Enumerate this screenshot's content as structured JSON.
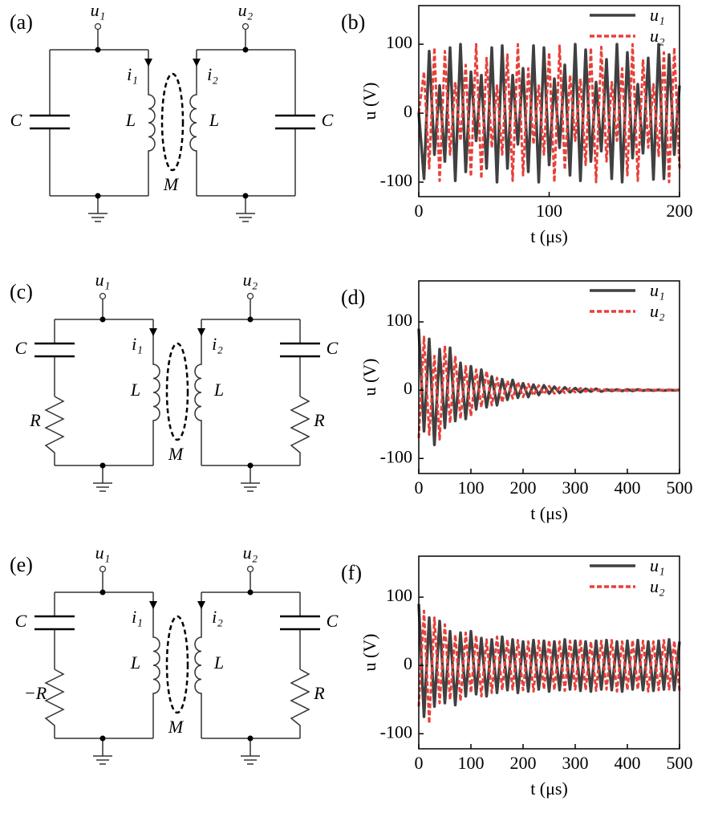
{
  "circuits": [
    {
      "panel": "(a)",
      "u_left": "u₁",
      "u_right": "u₂",
      "i_left": "i₁",
      "i_right": "i₂",
      "L_left": "L",
      "L_right": "L",
      "C_left": "C",
      "C_right": "C",
      "M": "M"
    },
    {
      "panel": "(c)",
      "u_left": "u₁",
      "u_right": "u₂",
      "i_left": "i₁",
      "i_right": "i₂",
      "L_left": "L",
      "L_right": "L",
      "C_left": "C",
      "C_right": "C",
      "M": "M",
      "R_left": "R",
      "R_right": "R"
    },
    {
      "panel": "(e)",
      "u_left": "u₁",
      "u_right": "u₂",
      "i_left": "i₁",
      "i_right": "i₂",
      "L_left": "L",
      "L_right": "L",
      "C_left": "C",
      "C_right": "C",
      "M": "M",
      "R_left": "−R",
      "R_right": "R"
    }
  ],
  "chart_data": [
    {
      "type": "line",
      "panel": "(b)",
      "xlabel": "t (μs)",
      "ylabel": "u (V)",
      "xlim": [
        0,
        200
      ],
      "ylim": [
        -121,
        156
      ],
      "xticks": [
        0,
        100,
        200
      ],
      "yticks": [
        -100,
        0,
        100
      ],
      "x": [
        0,
        4,
        8,
        12,
        16,
        20,
        24,
        28,
        32,
        36,
        40,
        44,
        48,
        52,
        56,
        60,
        64,
        68,
        72,
        76,
        80,
        84,
        88,
        92,
        96,
        100,
        104,
        108,
        112,
        116,
        120,
        124,
        128,
        132,
        136,
        140,
        144,
        148,
        152,
        156,
        160,
        164,
        168,
        172,
        176,
        180,
        184,
        188,
        192,
        196,
        200
      ],
      "series": [
        {
          "name": "u₁",
          "color": "#404040",
          "line_style": "solid",
          "values": [
            0,
            -95,
            90,
            -60,
            40,
            -70,
            95,
            -98,
            100,
            -85,
            60,
            -40,
            55,
            -80,
            95,
            -100,
            98,
            -80,
            55,
            -45,
            65,
            -85,
            98,
            -100,
            95,
            -75,
            50,
            -50,
            70,
            -90,
            100,
            -98,
            92,
            -70,
            45,
            -55,
            78,
            -95,
            100,
            -100,
            88,
            -65,
            42,
            -58,
            80,
            -96,
            100,
            -95,
            85,
            -60,
            40
          ]
        },
        {
          "name": "u₂",
          "color": "#e8403a",
          "line_style": "dashed",
          "values": [
            0,
            60,
            -80,
            95,
            -98,
            90,
            -60,
            45,
            -40,
            70,
            -92,
            100,
            -95,
            80,
            -50,
            40,
            -60,
            85,
            -98,
            100,
            -90,
            65,
            -45,
            40,
            -60,
            88,
            -100,
            98,
            -82,
            55,
            -40,
            50,
            -75,
            95,
            -100,
            96,
            -70,
            45,
            -40,
            65,
            -90,
            100,
            -98,
            78,
            -50,
            42,
            -62,
            88,
            -100,
            95,
            -80
          ]
        }
      ]
    },
    {
      "type": "line",
      "panel": "(d)",
      "xlabel": "t (μs)",
      "ylabel": "u (V)",
      "xlim": [
        0,
        500
      ],
      "ylim": [
        -122,
        160
      ],
      "xticks": [
        0,
        100,
        200,
        300,
        400,
        500
      ],
      "yticks": [
        -100,
        0,
        100
      ],
      "x": [
        0,
        10,
        20,
        30,
        40,
        50,
        60,
        70,
        80,
        90,
        100,
        110,
        120,
        130,
        140,
        150,
        160,
        170,
        180,
        190,
        200,
        210,
        220,
        230,
        240,
        250,
        260,
        270,
        280,
        290,
        300,
        310,
        320,
        330,
        340,
        350,
        360,
        370,
        380,
        390,
        400,
        410,
        420,
        430,
        440,
        450,
        460,
        470,
        480,
        490,
        500
      ],
      "series": [
        {
          "name": "u₁",
          "color": "#404040",
          "line_style": "solid",
          "values": [
            90,
            -60,
            75,
            -80,
            60,
            -55,
            62,
            -45,
            40,
            -42,
            35,
            -28,
            30,
            -25,
            20,
            -22,
            16,
            -14,
            15,
            -11,
            10,
            -10,
            8,
            -7,
            7,
            -5,
            5,
            -4,
            4,
            -3,
            3,
            -3,
            2,
            -2,
            2,
            -2,
            1,
            -1,
            1,
            -1,
            1,
            -1,
            1,
            -0.5,
            0.5,
            -0.5,
            0.5,
            -0.5,
            0.3,
            -0.3,
            0.3
          ]
        },
        {
          "name": "u₂",
          "color": "#e8403a",
          "line_style": "dashed",
          "values": [
            -70,
            78,
            -65,
            50,
            -72,
            65,
            -48,
            50,
            -42,
            35,
            -38,
            30,
            -25,
            28,
            -22,
            18,
            -18,
            14,
            -12,
            12,
            -10,
            9,
            -8,
            7,
            -6,
            6,
            -5,
            4,
            -4,
            3,
            -3,
            3,
            -2,
            2,
            -2,
            2,
            -1,
            1,
            -1,
            1,
            -1,
            1,
            -0.5,
            0.5,
            -0.5,
            0.5,
            -0.5,
            0.3,
            -0.3,
            0.3,
            -0.2
          ]
        }
      ]
    },
    {
      "type": "line",
      "panel": "(f)",
      "xlabel": "t (μs)",
      "ylabel": "u (V)",
      "xlim": [
        0,
        500
      ],
      "ylim": [
        -122,
        160
      ],
      "xticks": [
        0,
        100,
        200,
        300,
        400,
        500
      ],
      "yticks": [
        -100,
        0,
        100
      ],
      "x": [
        0,
        10,
        20,
        30,
        40,
        50,
        60,
        70,
        80,
        90,
        100,
        110,
        120,
        130,
        140,
        150,
        160,
        170,
        180,
        190,
        200,
        210,
        220,
        230,
        240,
        250,
        260,
        270,
        280,
        290,
        300,
        310,
        320,
        330,
        340,
        350,
        360,
        370,
        380,
        390,
        400,
        410,
        420,
        430,
        440,
        450,
        460,
        470,
        480,
        490,
        500
      ],
      "series": [
        {
          "name": "u₁",
          "color": "#404040",
          "line_style": "solid",
          "values": [
            90,
            -75,
            70,
            -60,
            65,
            -55,
            50,
            -58,
            48,
            -45,
            50,
            -42,
            40,
            -45,
            38,
            -40,
            42,
            -36,
            38,
            -40,
            35,
            -38,
            37,
            -35,
            36,
            -38,
            35,
            -36,
            38,
            -35,
            36,
            -37,
            35,
            -38,
            36,
            -35,
            37,
            -36,
            35,
            -38,
            36,
            -35,
            37,
            -36,
            35,
            -37,
            36,
            -35,
            38,
            -36,
            35
          ]
        },
        {
          "name": "u₂",
          "color": "#e8403a",
          "line_style": "dashed",
          "values": [
            -60,
            80,
            -85,
            70,
            -55,
            60,
            -50,
            45,
            -52,
            48,
            -40,
            44,
            -45,
            38,
            -40,
            42,
            -36,
            38,
            -35,
            37,
            -36,
            35,
            -38,
            36,
            -35,
            37,
            -36,
            35,
            -37,
            36,
            -35,
            38,
            -36,
            35,
            -37,
            36,
            -35,
            37,
            -38,
            35,
            -36,
            37,
            -35,
            36,
            -38,
            35,
            -36,
            37,
            -35,
            36,
            -37
          ]
        }
      ]
    }
  ]
}
